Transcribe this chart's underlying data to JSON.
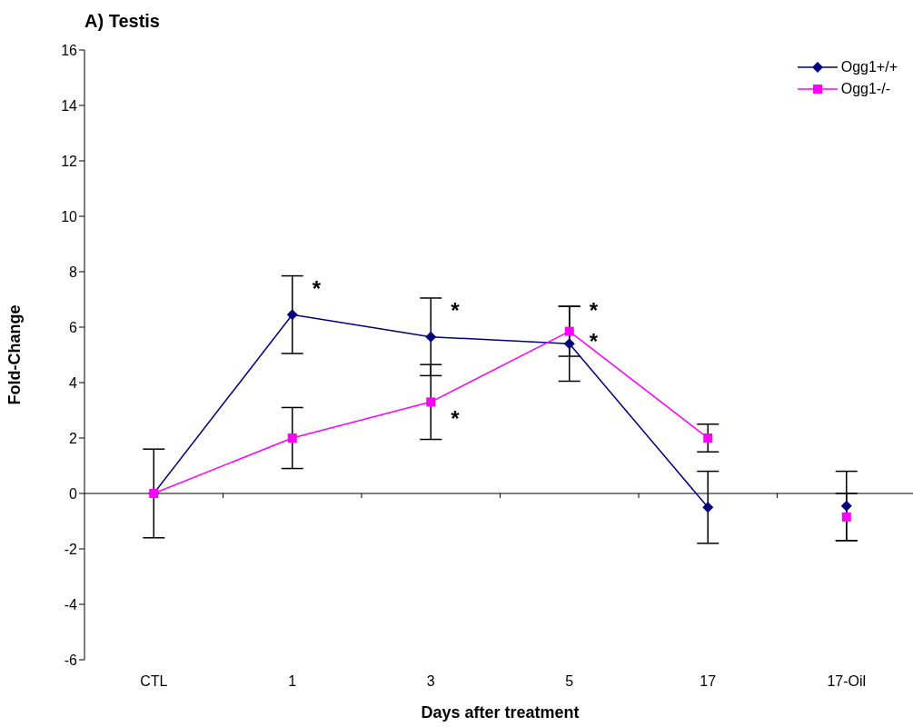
{
  "chart_data": {
    "type": "line",
    "title": "A) Testis",
    "xlabel": "Days after treatment",
    "ylabel": "Fold-Change",
    "categories": [
      "CTL",
      "1",
      "3",
      "5",
      "17",
      "17-Oil"
    ],
    "series": [
      {
        "name": "Ogg1+/+",
        "color": "#000080",
        "marker": "diamond",
        "values": [
          0,
          6.45,
          5.65,
          5.4,
          -0.5,
          null
        ],
        "errors": [
          1.6,
          1.4,
          1.4,
          1.35,
          1.3,
          null
        ]
      },
      {
        "name": "Ogg1-/-",
        "color": "#ff00ff",
        "marker": "square",
        "values": [
          0,
          2.0,
          3.3,
          5.85,
          2.0,
          null
        ],
        "errors": [
          null,
          1.1,
          1.35,
          0.9,
          0.5,
          null
        ]
      },
      {
        "type": "scatter",
        "color": "#000080",
        "marker": "diamond",
        "values": [
          null,
          null,
          null,
          null,
          null,
          -0.45
        ],
        "errors": [
          null,
          null,
          null,
          null,
          null,
          1.25
        ]
      },
      {
        "type": "scatter",
        "color": "#ff00ff",
        "marker": "square",
        "values": [
          null,
          null,
          null,
          null,
          null,
          -0.85
        ],
        "errors": [
          null,
          null,
          null,
          null,
          null,
          0.85
        ]
      }
    ],
    "ylim": [
      -6,
      16
    ],
    "yticks": [
      -6,
      -4,
      -2,
      0,
      2,
      4,
      6,
      8,
      10,
      12,
      14,
      16
    ],
    "ref_lines": [
      {
        "axis": "y",
        "value": 0,
        "color": "#000000"
      }
    ],
    "legend": "top right",
    "annotations": [
      {
        "text": "*",
        "x": "1",
        "y": 7.4
      },
      {
        "text": "*",
        "x": "3",
        "y": 6.6
      },
      {
        "text": "*",
        "x": "3",
        "y": 2.7
      },
      {
        "text": "*",
        "x": "5",
        "y": 6.6
      },
      {
        "text": "*",
        "x": "5",
        "y": 5.5
      }
    ]
  }
}
